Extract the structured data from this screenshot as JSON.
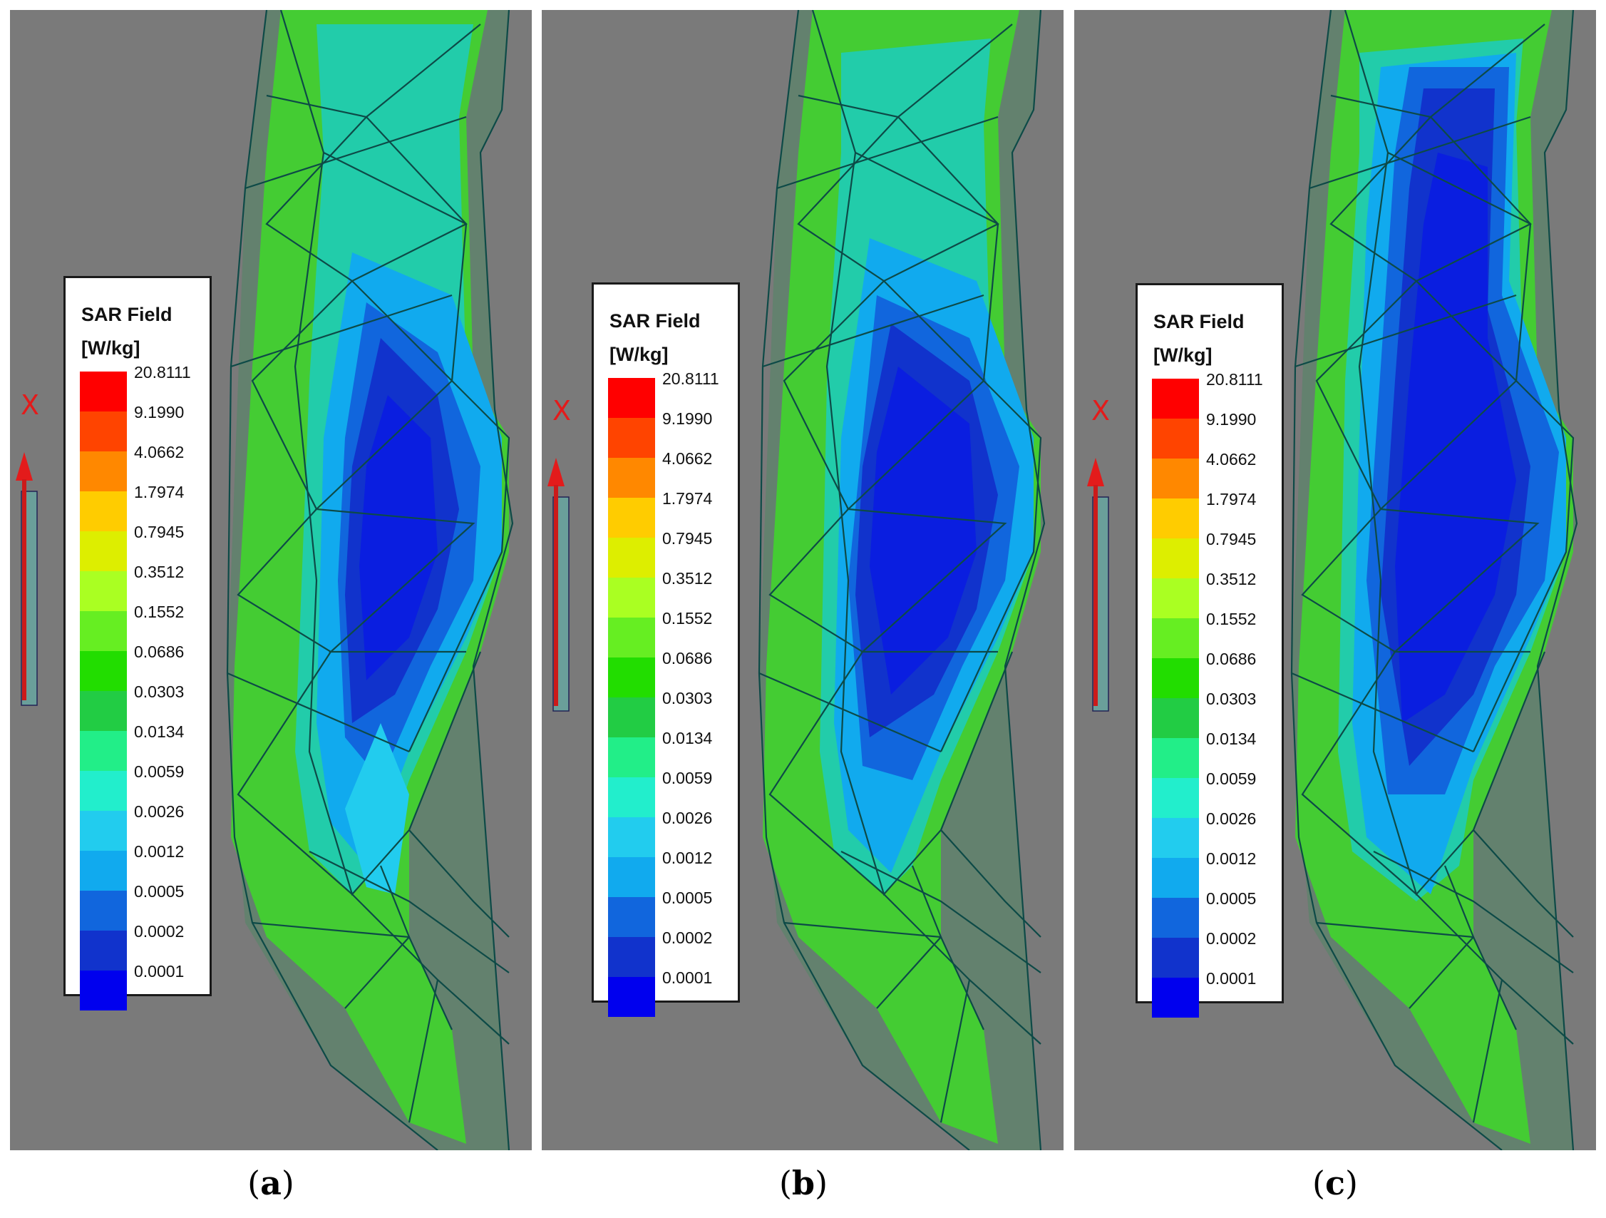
{
  "panels": [
    {
      "caption": "(a)",
      "legend": {
        "title": "SAR Field\n[W/kg]",
        "values": [
          "20.8111",
          "9.1990",
          "4.0662",
          "1.7974",
          "0.7945",
          "0.3512",
          "0.1552",
          "0.0686",
          "0.0303",
          "0.0134",
          "0.0059",
          "0.0026",
          "0.0012",
          "0.0005",
          "0.0002",
          "0.0001"
        ]
      },
      "axis_label": "X"
    },
    {
      "caption": "(b)",
      "legend": {
        "title": "SAR Field\n[W/kg]",
        "values": [
          "20.8111",
          "9.1990",
          "4.0662",
          "1.7974",
          "0.7945",
          "0.3512",
          "0.1552",
          "0.0686",
          "0.0303",
          "0.0134",
          "0.0059",
          "0.0026",
          "0.0012",
          "0.0005",
          "0.0002",
          "0.0001"
        ]
      },
      "axis_label": "X"
    },
    {
      "caption": "(c)",
      "legend": {
        "title": "SAR Field\n[W/kg]",
        "values": [
          "20.8111",
          "9.1990",
          "4.0662",
          "1.7974",
          "0.7945",
          "0.3512",
          "0.1552",
          "0.0686",
          "0.0303",
          "0.0134",
          "0.0059",
          "0.0026",
          "0.0012",
          "0.0005",
          "0.0002",
          "0.0001"
        ]
      },
      "axis_label": "X"
    }
  ],
  "colorscale": [
    "#ff0000",
    "#ff4400",
    "#ff8800",
    "#ffcc00",
    "#ddee00",
    "#aaff22",
    "#66ee22",
    "#22dd00",
    "#22cc44",
    "#22ee88",
    "#22eecc",
    "#22ccee",
    "#11aaee",
    "#1166dd",
    "#1133cc",
    "#0000ee"
  ]
}
